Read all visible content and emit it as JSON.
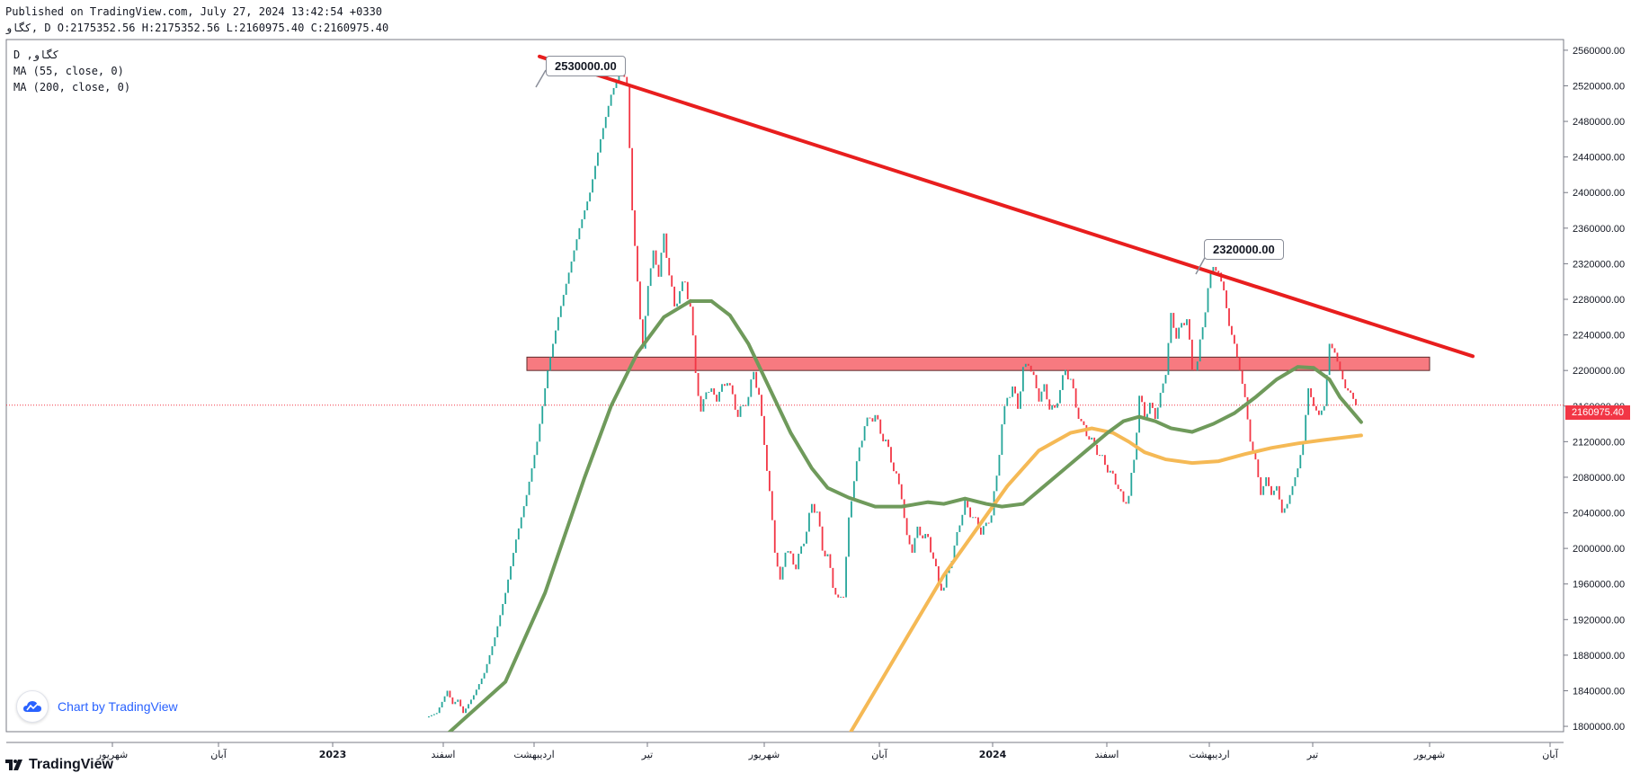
{
  "header": {
    "published": "Published on TradingView.com, July 27, 2024 13:42:54 +0330",
    "symbol_line": "ﮐﮕﺎﻭ, D O:2175352.56 H:2175352.56 L:2160975.40 C:2160975.40"
  },
  "legend": {
    "symbol": "D ,ﮐﮕﺎﻭ",
    "ma55": "MA (55, close, 0)",
    "ma200": "MA (200, close, 0)"
  },
  "annotations": {
    "high1": "2530000.00",
    "high2": "2320000.00"
  },
  "last_price_label": "2160975.40",
  "branding": {
    "chart_by": "Chart by TradingView",
    "logo": "TradingView"
  },
  "colors": {
    "up": "#26a69a",
    "down": "#f23645",
    "trendline": "#e81e1e",
    "zone_fill": "#f77a80",
    "ma55": "#6f9a5b",
    "ma200": "#f5b955"
  },
  "chart_data": {
    "type": "candlestick",
    "x_ticks": [
      "ﺷﻬﺮﻳﻮﺭ",
      "ﺁﺑﺎﻥ",
      "2023",
      "ﺍﺳﻔﻨﺪ",
      "ﺍﺭﺩﻳﺒﻬﺸﺖ",
      "ﺗﻴﺮ",
      "ﺷﻬﺮﻳﻮﺭ",
      "ﺁﺑﺎﻥ",
      "2024",
      "ﺍﺳﻔﻨﺪ",
      "ﺍﺭﺩﻳﺒﻬﺸﺖ",
      "ﺗﻴﺮ",
      "ﺷﻬﺮﻳﻮﺭ",
      "ﺁﺑﺎﻥ"
    ],
    "y_ticks": [
      "2560000.00",
      "2520000.00",
      "2480000.00",
      "2440000.00",
      "2400000.00",
      "2360000.00",
      "2320000.00",
      "2280000.00",
      "2240000.00",
      "2200000.00",
      "2160000.00",
      "2120000.00",
      "2080000.00",
      "2040000.00",
      "2000000.00",
      "1960000.00",
      "1920000.00",
      "1880000.00",
      "1840000.00",
      "1800000.00"
    ],
    "ylim": [
      1794000,
      2572000
    ],
    "last_price": 2160975.4,
    "trendline": [
      [
        0,
        2553000
      ],
      [
        1,
        2216000
      ]
    ],
    "resistance_zone": [
      2200000,
      2215000
    ],
    "price_path": [
      [
        0,
        1810000
      ],
      [
        4,
        1815000
      ],
      [
        8,
        1840000
      ],
      [
        10,
        1825000
      ],
      [
        12,
        1830000
      ],
      [
        14,
        1815000
      ],
      [
        18,
        1835000
      ],
      [
        22,
        1860000
      ],
      [
        26,
        1900000
      ],
      [
        30,
        1950000
      ],
      [
        34,
        2010000
      ],
      [
        38,
        2060000
      ],
      [
        42,
        2120000
      ],
      [
        46,
        2200000
      ],
      [
        50,
        2260000
      ],
      [
        54,
        2310000
      ],
      [
        58,
        2360000
      ],
      [
        62,
        2400000
      ],
      [
        66,
        2460000
      ],
      [
        70,
        2510000
      ],
      [
        74,
        2540000
      ],
      [
        76,
        2520000
      ],
      [
        78,
        2380000
      ],
      [
        80,
        2300000
      ],
      [
        82,
        2220000
      ],
      [
        84,
        2300000
      ],
      [
        86,
        2330000
      ],
      [
        88,
        2310000
      ],
      [
        90,
        2350000
      ],
      [
        92,
        2310000
      ],
      [
        94,
        2270000
      ],
      [
        96,
        2290000
      ],
      [
        98,
        2300000
      ],
      [
        100,
        2270000
      ],
      [
        102,
        2200000
      ],
      [
        104,
        2150000
      ],
      [
        106,
        2180000
      ],
      [
        110,
        2170000
      ],
      [
        114,
        2190000
      ],
      [
        118,
        2150000
      ],
      [
        122,
        2170000
      ],
      [
        124,
        2200000
      ],
      [
        126,
        2170000
      ],
      [
        128,
        2120000
      ],
      [
        130,
        2060000
      ],
      [
        132,
        2000000
      ],
      [
        134,
        1960000
      ],
      [
        136,
        2000000
      ],
      [
        140,
        1980000
      ],
      [
        144,
        2020000
      ],
      [
        146,
        2050000
      ],
      [
        148,
        2040000
      ],
      [
        150,
        2000000
      ],
      [
        152,
        1990000
      ],
      [
        154,
        1960000
      ],
      [
        156,
        1940000
      ],
      [
        158,
        1950000
      ],
      [
        160,
        2030000
      ],
      [
        162,
        2080000
      ],
      [
        164,
        2110000
      ],
      [
        166,
        2140000
      ],
      [
        170,
        2150000
      ],
      [
        172,
        2130000
      ],
      [
        174,
        2120000
      ],
      [
        176,
        2100000
      ],
      [
        178,
        2080000
      ],
      [
        180,
        2060000
      ],
      [
        182,
        2010000
      ],
      [
        184,
        2000000
      ],
      [
        186,
        2020000
      ],
      [
        190,
        2010000
      ],
      [
        192,
        1990000
      ],
      [
        194,
        1960000
      ],
      [
        196,
        1955000
      ],
      [
        198,
        1980000
      ],
      [
        200,
        2000000
      ],
      [
        202,
        2030000
      ],
      [
        204,
        2050000
      ],
      [
        206,
        2040000
      ],
      [
        208,
        2030000
      ],
      [
        210,
        2020000
      ],
      [
        212,
        2025000
      ],
      [
        214,
        2040000
      ],
      [
        216,
        2080000
      ],
      [
        218,
        2140000
      ],
      [
        220,
        2170000
      ],
      [
        222,
        2180000
      ],
      [
        224,
        2160000
      ],
      [
        226,
        2200000
      ],
      [
        228,
        2210000
      ],
      [
        230,
        2190000
      ],
      [
        232,
        2170000
      ],
      [
        234,
        2180000
      ],
      [
        236,
        2160000
      ],
      [
        238,
        2155000
      ],
      [
        240,
        2180000
      ],
      [
        242,
        2200000
      ],
      [
        244,
        2190000
      ],
      [
        246,
        2160000
      ],
      [
        248,
        2140000
      ],
      [
        250,
        2130000
      ],
      [
        252,
        2120000
      ],
      [
        254,
        2110000
      ],
      [
        256,
        2100000
      ],
      [
        258,
        2090000
      ],
      [
        260,
        2080000
      ],
      [
        262,
        2070000
      ],
      [
        264,
        2050000
      ],
      [
        266,
        2060000
      ],
      [
        268,
        2100000
      ],
      [
        270,
        2170000
      ],
      [
        272,
        2150000
      ],
      [
        274,
        2160000
      ],
      [
        276,
        2150000
      ],
      [
        278,
        2170000
      ],
      [
        280,
        2200000
      ],
      [
        282,
        2260000
      ],
      [
        284,
        2240000
      ],
      [
        286,
        2250000
      ],
      [
        288,
        2260000
      ],
      [
        290,
        2200000
      ],
      [
        292,
        2210000
      ],
      [
        294,
        2250000
      ],
      [
        296,
        2290000
      ],
      [
        298,
        2320000
      ],
      [
        300,
        2310000
      ],
      [
        302,
        2290000
      ],
      [
        304,
        2250000
      ],
      [
        306,
        2230000
      ],
      [
        308,
        2200000
      ],
      [
        310,
        2170000
      ],
      [
        312,
        2120000
      ],
      [
        314,
        2100000
      ],
      [
        316,
        2060000
      ],
      [
        318,
        2080000
      ],
      [
        320,
        2060000
      ],
      [
        322,
        2070000
      ],
      [
        324,
        2040000
      ],
      [
        326,
        2050000
      ],
      [
        328,
        2070000
      ],
      [
        330,
        2090000
      ],
      [
        332,
        2120000
      ],
      [
        334,
        2180000
      ],
      [
        336,
        2160000
      ],
      [
        338,
        2150000
      ],
      [
        340,
        2160000
      ],
      [
        342,
        2230000
      ],
      [
        344,
        2220000
      ],
      [
        346,
        2200000
      ],
      [
        348,
        2180000
      ],
      [
        350,
        2175000
      ],
      [
        352,
        2161000
      ]
    ],
    "ma55": [
      [
        0,
        1770000
      ],
      [
        30,
        1850000
      ],
      [
        45,
        1950000
      ],
      [
        60,
        2080000
      ],
      [
        70,
        2160000
      ],
      [
        80,
        2220000
      ],
      [
        90,
        2260000
      ],
      [
        100,
        2278000
      ],
      [
        108,
        2278000
      ],
      [
        115,
        2262000
      ],
      [
        122,
        2230000
      ],
      [
        130,
        2180000
      ],
      [
        138,
        2130000
      ],
      [
        146,
        2090000
      ],
      [
        152,
        2068000
      ],
      [
        160,
        2057000
      ],
      [
        170,
        2047000
      ],
      [
        180,
        2047000
      ],
      [
        190,
        2052000
      ],
      [
        196,
        2050000
      ],
      [
        204,
        2056000
      ],
      [
        212,
        2050000
      ],
      [
        218,
        2047000
      ],
      [
        226,
        2050000
      ],
      [
        234,
        2070000
      ],
      [
        242,
        2090000
      ],
      [
        250,
        2110000
      ],
      [
        258,
        2130000
      ],
      [
        264,
        2143000
      ],
      [
        270,
        2148000
      ],
      [
        276,
        2143000
      ],
      [
        282,
        2135000
      ],
      [
        290,
        2131000
      ],
      [
        298,
        2140000
      ],
      [
        306,
        2152000
      ],
      [
        314,
        2170000
      ],
      [
        322,
        2190000
      ],
      [
        330,
        2204000
      ],
      [
        336,
        2203000
      ],
      [
        342,
        2190000
      ],
      [
        346,
        2170000
      ],
      [
        350,
        2156000
      ],
      [
        354,
        2142000
      ]
    ],
    "ma200": [
      [
        160,
        1790000
      ],
      [
        172,
        1850000
      ],
      [
        184,
        1910000
      ],
      [
        196,
        1970000
      ],
      [
        208,
        2020000
      ],
      [
        220,
        2070000
      ],
      [
        232,
        2110000
      ],
      [
        244,
        2130000
      ],
      [
        252,
        2135000
      ],
      [
        260,
        2130000
      ],
      [
        266,
        2120000
      ],
      [
        272,
        2108000
      ],
      [
        280,
        2100000
      ],
      [
        290,
        2096000
      ],
      [
        300,
        2098000
      ],
      [
        310,
        2106000
      ],
      [
        320,
        2113000
      ],
      [
        330,
        2118000
      ],
      [
        340,
        2122000
      ],
      [
        354,
        2127000
      ]
    ]
  }
}
